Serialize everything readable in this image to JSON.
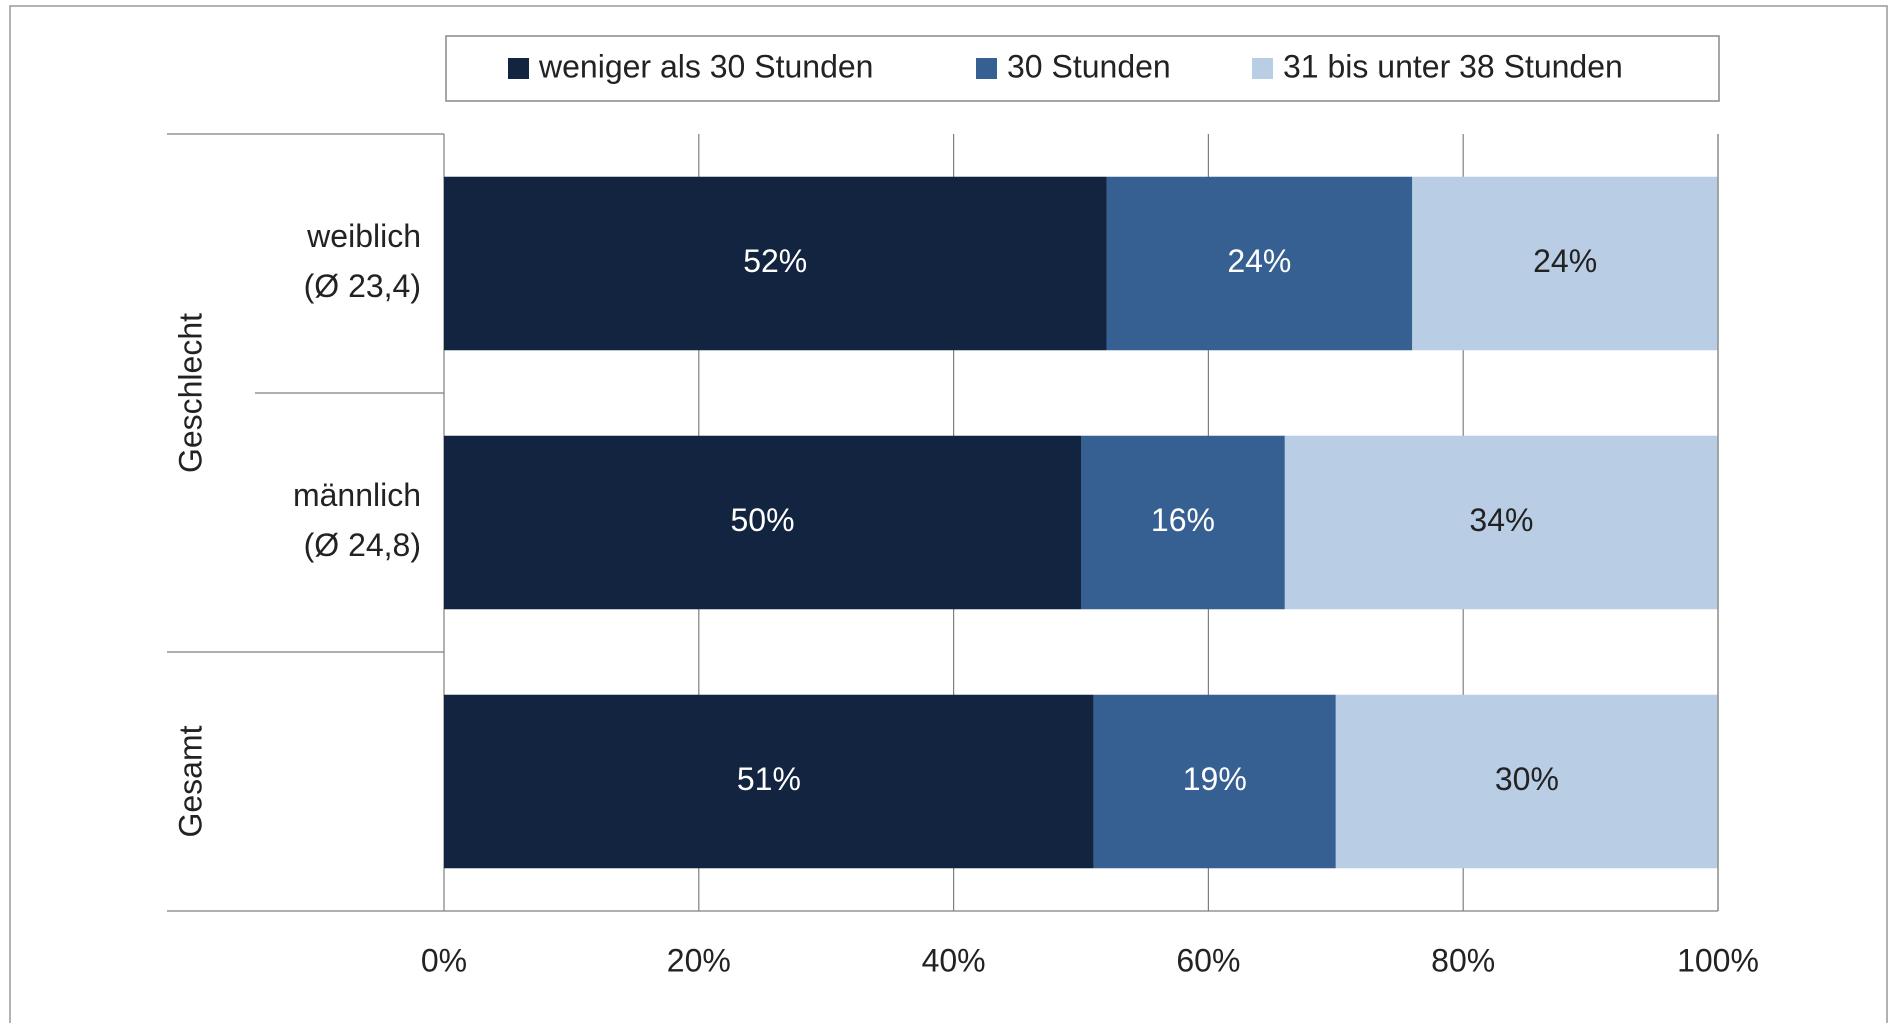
{
  "chart_data": {
    "type": "stacked-barh",
    "categories": [
      [
        "weiblich",
        "(Ø 23,4)"
      ],
      [
        "männlich",
        "(Ø 24,8)"
      ],
      null
    ],
    "groups": [
      {
        "label": "Geschlecht",
        "span": 2
      },
      {
        "label": "Gesamt",
        "span": 1
      }
    ],
    "series": [
      {
        "name": "weniger als 30 Stunden",
        "color": "#12243f",
        "values": [
          52,
          50,
          51
        ],
        "value_labels": [
          "52%",
          "50%",
          "51%"
        ]
      },
      {
        "name": "30 Stunden",
        "color": "#376092",
        "values": [
          24,
          16,
          19
        ],
        "value_labels": [
          "24%",
          "16%",
          "19%"
        ]
      },
      {
        "name": "31 bis unter 38 Stunden",
        "color": "#b9cde5",
        "values": [
          24,
          34,
          30
        ],
        "value_labels": [
          "24%",
          "34%",
          "30%"
        ]
      }
    ],
    "xlim": [
      0,
      100
    ],
    "xticks": [
      {
        "value": 0,
        "label": "0%"
      },
      {
        "value": 20,
        "label": "20%"
      },
      {
        "value": 40,
        "label": "40%"
      },
      {
        "value": 60,
        "label": "60%"
      },
      {
        "value": 80,
        "label": "80%"
      },
      {
        "value": 100,
        "label": "100%"
      }
    ],
    "grid": true,
    "legend": "top"
  }
}
